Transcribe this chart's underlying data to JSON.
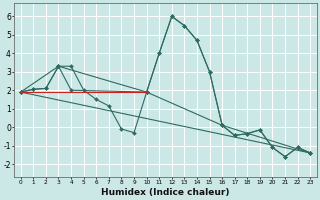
{
  "xlabel": "Humidex (Indice chaleur)",
  "ylabel": "",
  "xlim": [
    -0.5,
    23.5
  ],
  "ylim": [
    -2.7,
    6.7
  ],
  "yticks": [
    -2,
    -1,
    0,
    1,
    2,
    3,
    4,
    5,
    6
  ],
  "xticks": [
    0,
    1,
    2,
    3,
    4,
    5,
    6,
    7,
    8,
    9,
    10,
    11,
    12,
    13,
    14,
    15,
    16,
    17,
    18,
    19,
    20,
    21,
    22,
    23
  ],
  "background_color": "#cce8e6",
  "grid_color": "#ffffff",
  "line_color": "#2e6b60",
  "lines": [
    {
      "x": [
        0,
        1,
        2,
        3,
        4,
        5,
        6,
        7,
        8,
        9,
        10,
        11,
        12,
        13,
        14,
        15,
        16,
        17,
        18,
        19,
        20,
        21,
        22,
        23
      ],
      "y": [
        1.9,
        2.05,
        2.1,
        3.3,
        3.3,
        2.0,
        1.5,
        1.15,
        -0.1,
        -0.3,
        1.9,
        4.0,
        6.0,
        5.5,
        4.7,
        3.0,
        0.1,
        -0.45,
        -0.35,
        -0.15,
        -1.1,
        -1.6,
        -1.1,
        -1.4
      ]
    },
    {
      "x": [
        0,
        1,
        2,
        3,
        4,
        10,
        11,
        12,
        13,
        14,
        15,
        16,
        17,
        18,
        19,
        20,
        21,
        22,
        23
      ],
      "y": [
        1.9,
        2.05,
        2.1,
        3.3,
        2.0,
        1.9,
        4.0,
        6.0,
        5.5,
        4.7,
        3.0,
        0.1,
        -0.45,
        -0.35,
        -0.15,
        -1.1,
        -1.6,
        -1.1,
        -1.4
      ]
    },
    {
      "x": [
        0,
        3,
        10,
        16,
        23
      ],
      "y": [
        1.9,
        3.3,
        1.9,
        0.1,
        -1.4
      ]
    },
    {
      "x": [
        0,
        23
      ],
      "y": [
        1.9,
        -1.4
      ]
    }
  ],
  "red_line": {
    "x": [
      0,
      10
    ],
    "y": [
      1.9,
      1.9
    ]
  }
}
